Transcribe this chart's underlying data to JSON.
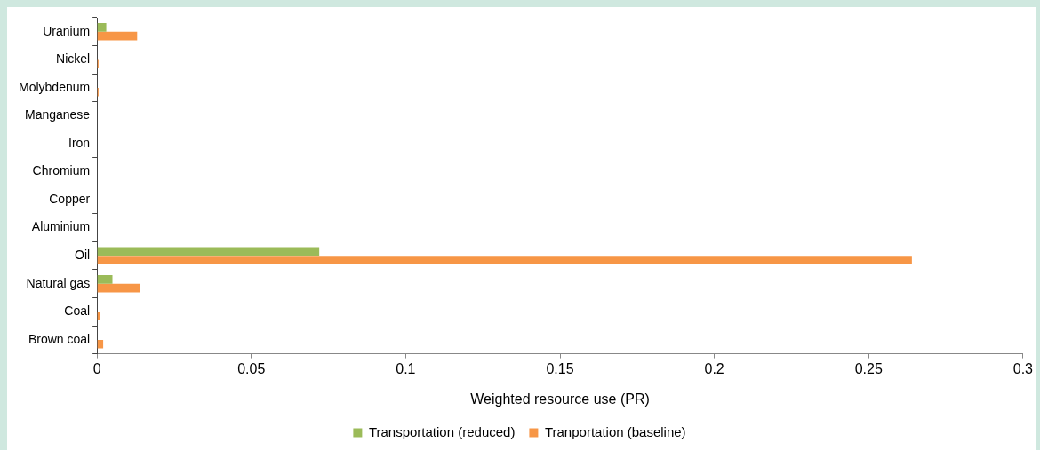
{
  "chart_data": {
    "type": "bar",
    "orientation": "horizontal",
    "xlabel": "Weighted resource use (PR)",
    "categories": [
      "Uranium",
      "Nickel",
      "Molybdenum",
      "Manganese",
      "Iron",
      "Chromium",
      "Copper",
      "Aluminium",
      "Oil",
      "Natural gas",
      "Coal",
      "Brown coal"
    ],
    "series": [
      {
        "name": "Transportation (reduced)",
        "color": "#9bbb59",
        "values": [
          0.003,
          0,
          0,
          0,
          0,
          0,
          0,
          0,
          0.072,
          0.005,
          0,
          0
        ]
      },
      {
        "name": "Tranportation (baseline)",
        "color": "#f79646",
        "values": [
          0.013,
          0.0005,
          0.0005,
          0,
          0,
          0,
          0,
          0,
          0.264,
          0.014,
          0.001,
          0.002
        ]
      }
    ],
    "xlim": [
      0,
      0.3
    ],
    "xticks": [
      0,
      0.05,
      0.1,
      0.15,
      0.2,
      0.25,
      0.3
    ],
    "grid": false,
    "legend": "bottom"
  }
}
